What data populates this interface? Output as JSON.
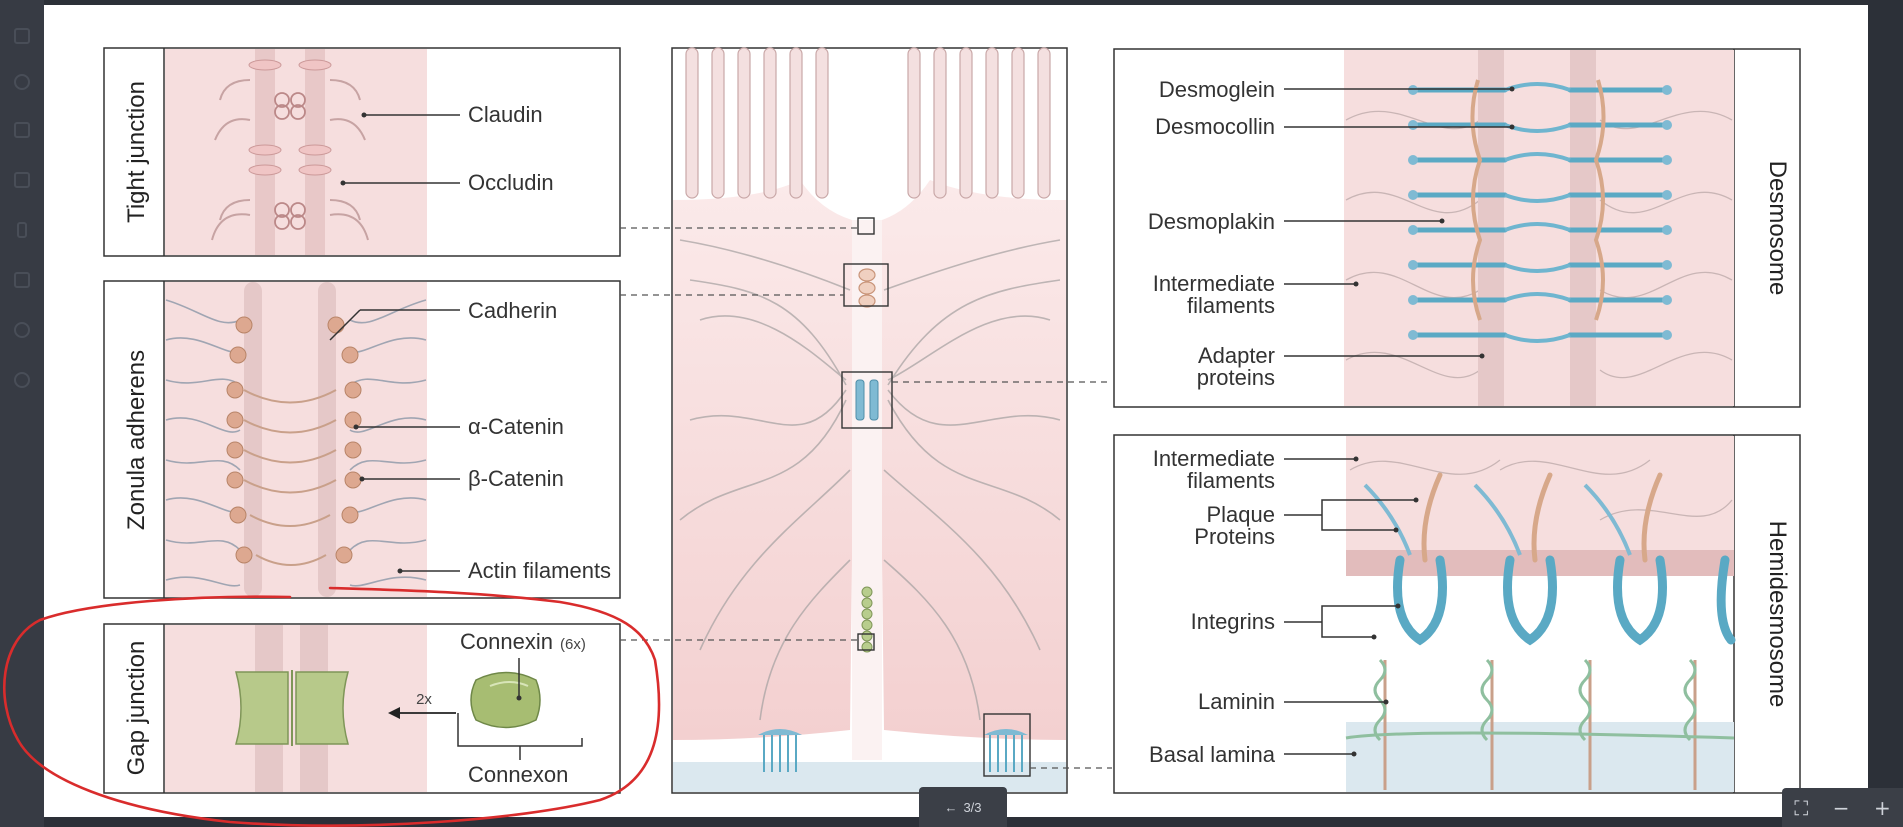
{
  "viewer": {
    "page_indicator": "3/3",
    "back_icon": "arrow-left-icon",
    "fullscreen_icon": "fullscreen-icon",
    "zoom_out_label": "−",
    "zoom_in_label": "+"
  },
  "diagram": {
    "tight_junction": {
      "title": "Tight junction",
      "labels": [
        "Claudin",
        "Occludin"
      ]
    },
    "zonula_adherens": {
      "title": "Zonula adherens",
      "labels": [
        "Cadherin",
        "α-Catenin",
        "β-Catenin",
        "Actin filaments"
      ]
    },
    "gap_junction": {
      "title": "Gap junction",
      "connexin": "Connexin",
      "connexin_count": "(6x)",
      "multiplier": "2x",
      "connexon": "Connexon"
    },
    "desmosome": {
      "title": "Desmosome",
      "labels": [
        "Desmoglein",
        "Desmocollin",
        "Desmoplakin",
        "Intermediate",
        "filaments",
        "Adapter",
        "proteins"
      ]
    },
    "hemidesmosome": {
      "title": "Hemidesmosome",
      "labels": [
        "Intermediate",
        "filaments",
        "Plaque",
        "Proteins",
        "Integrins",
        "Laminin",
        "Basal lamina"
      ]
    }
  },
  "colors": {
    "pink": "#f6dede",
    "teal": "#5aa9c4",
    "tan": "#d7a88a",
    "green": "#a9c27a",
    "annotation": "#d92c2c"
  }
}
